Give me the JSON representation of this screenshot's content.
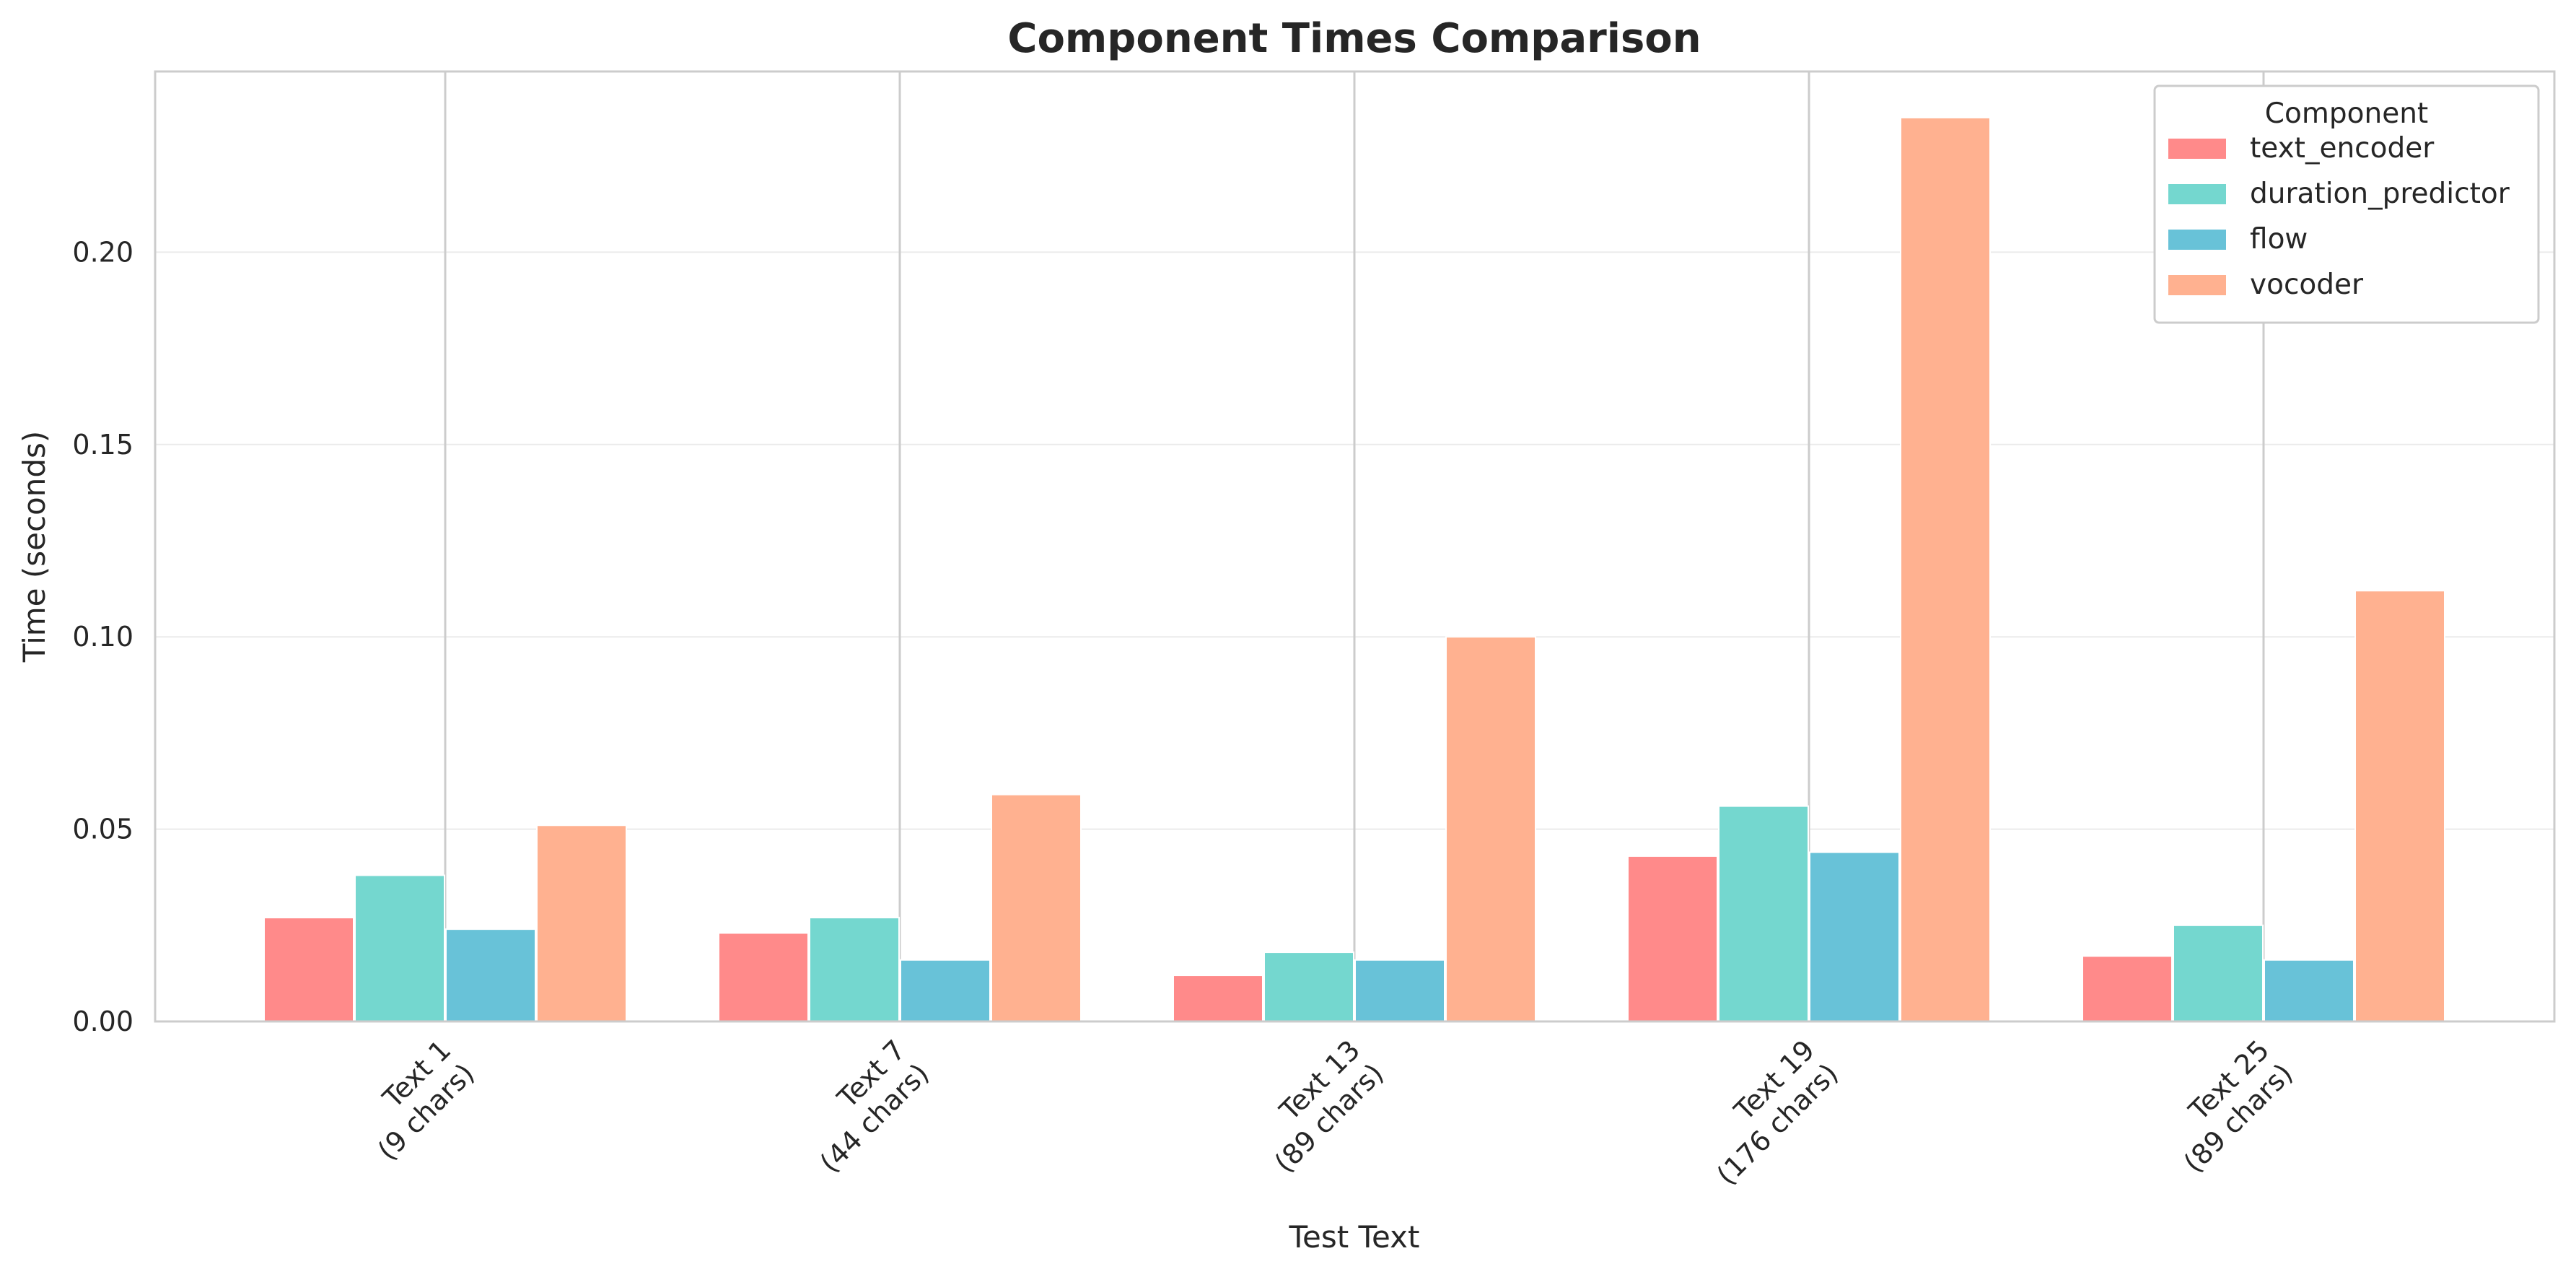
{
  "chart_data": {
    "type": "bar",
    "title": "Component Times Comparison",
    "xlabel": "Test Text",
    "ylabel": "Time (seconds)",
    "categories": [
      "Text 1\n(9 chars)",
      "Text 7\n(44 chars)",
      "Text 13\n(89 chars)",
      "Text 19\n(176 chars)",
      "Text 25\n(89 chars)"
    ],
    "ylim": [
      0,
      0.247
    ],
    "yticks": [
      "0.00",
      "0.05",
      "0.10",
      "0.15",
      "0.20"
    ],
    "ytick_values": [
      0,
      0.05,
      0.1,
      0.15,
      0.2
    ],
    "grid": "horizontal",
    "legend_title": "Component",
    "legend_position": "top-right",
    "series": [
      {
        "name": "text_encoder",
        "color": "#ff8a8a",
        "values": [
          0.027,
          0.023,
          0.012,
          0.043,
          0.017
        ]
      },
      {
        "name": "duration_predictor",
        "color": "#74d7cf",
        "values": [
          0.038,
          0.027,
          0.018,
          0.056,
          0.025
        ]
      },
      {
        "name": "flow",
        "color": "#68c2d8",
        "values": [
          0.024,
          0.016,
          0.016,
          0.044,
          0.016
        ]
      },
      {
        "name": "vocoder",
        "color": "#ffb190",
        "values": [
          0.051,
          0.059,
          0.1,
          0.235,
          0.112
        ]
      }
    ]
  }
}
